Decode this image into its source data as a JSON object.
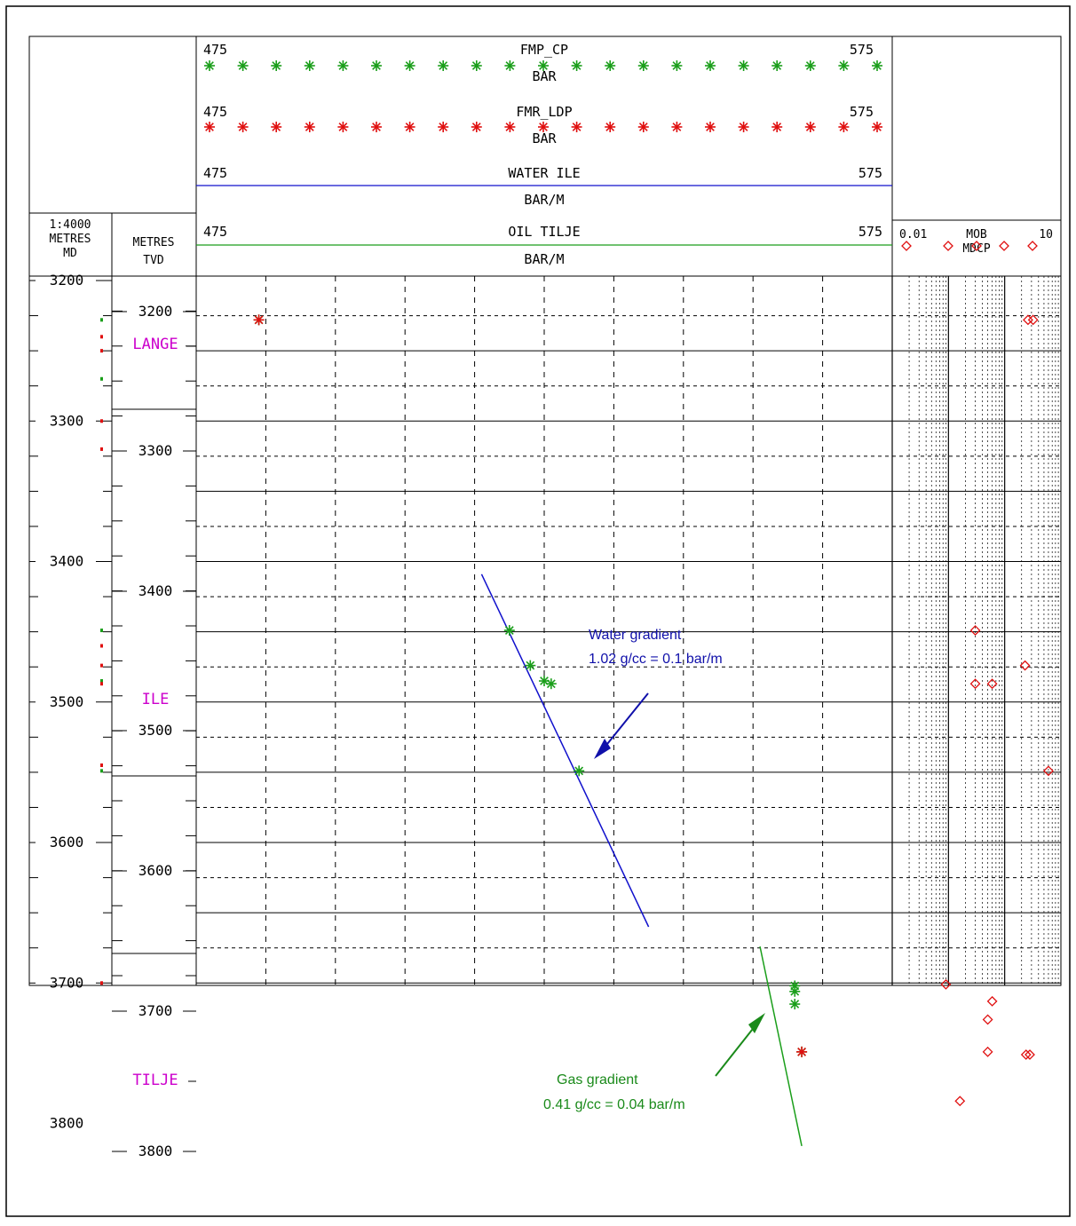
{
  "header": {
    "md_scale": "1:4000",
    "md_units": "METRES",
    "md_label": "MD",
    "tvd_units": "METRES",
    "tvd_label": "TVD",
    "curves": [
      {
        "min": "475",
        "name": "FMP_CP",
        "unit": "BAR",
        "max": "575",
        "color": "#1a9e1a"
      },
      {
        "min": "475",
        "name": "FMR_LDP",
        "unit": "BAR",
        "max": "575",
        "color": "#e01010"
      },
      {
        "min": "475",
        "name": "WATER ILE",
        "unit": "BAR/M",
        "max": "575",
        "color": "#1010cc"
      },
      {
        "min": "475",
        "name": "OIL TILJE",
        "unit": "BAR/M",
        "max": "575",
        "color": "#1a9e1a"
      }
    ],
    "mob": {
      "min": "0.01",
      "name": "MOB",
      "unit": "MDCP",
      "max": "10",
      "color": "#e01010"
    }
  },
  "depth_track": {
    "md_ticks": [
      "3200",
      "3300",
      "3400",
      "3500",
      "3600",
      "3700",
      "3800"
    ],
    "tvd_ticks": [
      "3200",
      "3300",
      "3400",
      "3500",
      "3600",
      "3700",
      "3800"
    ],
    "zones": [
      {
        "name": "LANGE",
        "color": "#cc00cc"
      },
      {
        "name": "ILE",
        "color": "#cc00cc"
      },
      {
        "name": "TILJE",
        "color": "#cc00cc"
      }
    ]
  },
  "annotations": {
    "water": {
      "line1": "Water gradient",
      "line2": "1.02 g/cc = 0.1 bar/m",
      "color": "#1010aa"
    },
    "gas": {
      "line1": "Gas gradient",
      "line2": "0.41 g/cc = 0.04 bar/m",
      "color": "#1a8a1a"
    }
  },
  "chart_data": {
    "type": "scatter",
    "xlabel": "BAR",
    "ylabel": "MD (METRES)",
    "xlim": [
      475,
      575
    ],
    "ylim": [
      3200,
      3870
    ],
    "log_scale_mob": true,
    "mob_xlim": [
      0.01,
      10
    ],
    "grid": true,
    "series": [
      {
        "name": "FMP_CP",
        "color": "#1a9e1a",
        "marker": "asterisk",
        "points": [
          [
            484,
            3228
          ],
          [
            520,
            3449
          ],
          [
            523,
            3474
          ],
          [
            525,
            3485
          ],
          [
            526,
            3487
          ],
          [
            530,
            3549
          ],
          [
            561,
            3702
          ],
          [
            561,
            3706
          ],
          [
            561,
            3715
          ],
          [
            562,
            3749
          ]
        ]
      },
      {
        "name": "FMR_LDP",
        "color": "#e01010",
        "marker": "asterisk",
        "points": [
          [
            484,
            3228
          ],
          [
            562,
            3749
          ]
        ]
      },
      {
        "name": "WATER ILE",
        "color": "#1010cc",
        "marker": "line",
        "points": [
          [
            516,
            3409
          ],
          [
            540,
            3660
          ]
        ]
      },
      {
        "name": "OIL TILJE",
        "color": "#1a9e1a",
        "marker": "line",
        "points": [
          [
            556,
            3674
          ],
          [
            562,
            3816
          ]
        ]
      },
      {
        "name": "MOB",
        "color": "#e01010",
        "marker": "diamond",
        "points": [
          [
            2.6,
            3228
          ],
          [
            3.2,
            3228
          ],
          [
            0.3,
            3449
          ],
          [
            2.3,
            3474
          ],
          [
            0.3,
            3487
          ],
          [
            0.6,
            3487
          ],
          [
            6.0,
            3549
          ],
          [
            0.09,
            3701
          ],
          [
            0.6,
            3713
          ],
          [
            0.5,
            3726
          ],
          [
            0.5,
            3749
          ],
          [
            2.4,
            3751
          ],
          [
            2.8,
            3751
          ],
          [
            0.16,
            3784
          ]
        ]
      }
    ]
  }
}
